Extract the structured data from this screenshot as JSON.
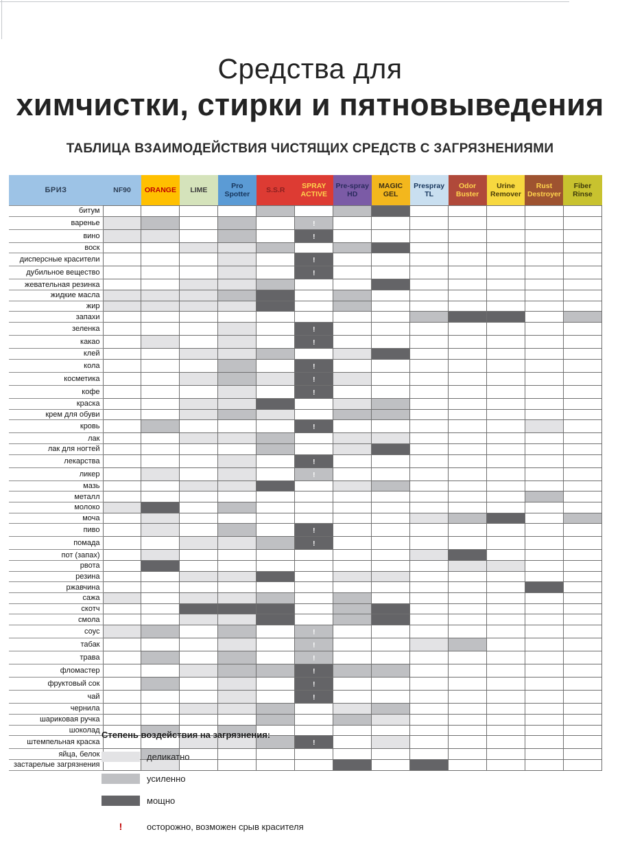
{
  "page": {
    "title_line1": "Средства для",
    "title_line2": "химчистки, стирки и пятновыведения",
    "subtitle": "ТАБЛИЦА ВЗАИМОДЕЙСТВИЯ ЧИСТЯЩИХ СРЕДСТВ С ЗАГРЯЗНЕНИЯМИ"
  },
  "chart_data": {
    "type": "heatmap",
    "title": "ТАБЛИЦА ВЗАИМОДЕЙСТВИЯ ЧИСТЯЩИХ СРЕДСТВ С ЗАГРЯЗНЕНИЯМИ",
    "corner_label": "БРИЗ",
    "value_scale": {
      "1": "деликатно",
      "2": "усиленно",
      "3": "мощно",
      "!": "осторожно, возможен срыв красителя"
    },
    "colors": {
      "1": "#e3e3e5",
      "2": "#bfc0c3",
      "3": "#646467",
      "grid": "#6f6f6f",
      "warning": "#c00000"
    },
    "columns": [
      {
        "label": "NF90",
        "bg": "#9dc3e6",
        "fg": "#2e4057"
      },
      {
        "label": "ORANGE",
        "bg": "#ffc000",
        "fg": "#c00000"
      },
      {
        "label": "LIME",
        "bg": "#d5e3bb",
        "fg": "#3d3d3d"
      },
      {
        "label": "Pro Spotter",
        "bg": "#5b9bd5",
        "fg": "#17365d"
      },
      {
        "label": "S.S.R",
        "bg": "#dd3b33",
        "fg": "#8b2020"
      },
      {
        "label": "SPRAY ACTIVE",
        "bg": "#dd3b33",
        "fg": "#ffd34d"
      },
      {
        "label": "Pre-spray HD",
        "bg": "#7b5ba6",
        "fg": "#2b2b5e"
      },
      {
        "label": "MAGIC GEL",
        "bg": "#f3b71d",
        "fg": "#3d3014"
      },
      {
        "label": "Prespray TL",
        "bg": "#c9dff0",
        "fg": "#17365d"
      },
      {
        "label": "Odor Buster",
        "bg": "#b0493a",
        "fg": "#ffd34d"
      },
      {
        "label": "Urine Remover",
        "bg": "#f7d83f",
        "fg": "#4a3c08"
      },
      {
        "label": "Rust Destroyer",
        "bg": "#9e5330",
        "fg": "#ffd34d"
      },
      {
        "label": "Fiber Rinse",
        "bg": "#c8c22f",
        "fg": "#3d3a0a"
      }
    ],
    "rows": [
      {
        "label": "битум",
        "cells": [
          "",
          "",
          "",
          "",
          "2",
          "",
          "2",
          "3",
          "",
          "",
          "",
          "",
          ""
        ]
      },
      {
        "label": "варенье",
        "cells": [
          "1",
          "2",
          "",
          "2",
          "",
          "2!",
          "",
          "",
          "",
          "",
          "",
          "",
          ""
        ]
      },
      {
        "label": "вино",
        "cells": [
          "1",
          "1",
          "",
          "2",
          "",
          "3!",
          "",
          "",
          "",
          "",
          "",
          "",
          ""
        ]
      },
      {
        "label": "воск",
        "cells": [
          "",
          "",
          "1",
          "1",
          "2",
          "",
          "2",
          "3",
          "",
          "",
          "",
          "",
          ""
        ]
      },
      {
        "label": "дисперсные красители",
        "cells": [
          "",
          "",
          "",
          "1",
          "",
          "3!",
          "",
          "",
          "",
          "",
          "",
          "",
          ""
        ]
      },
      {
        "label": "дубильное вещество",
        "cells": [
          "",
          "",
          "",
          "1",
          "",
          "3!",
          "",
          "",
          "",
          "",
          "",
          "",
          ""
        ]
      },
      {
        "label": "жевательная резинка",
        "cells": [
          "",
          "",
          "1",
          "1",
          "2",
          "",
          "",
          "3",
          "",
          "",
          "",
          "",
          ""
        ]
      },
      {
        "label": "жидкие масла",
        "cells": [
          "1",
          "1",
          "1",
          "2",
          "3",
          "",
          "2",
          "",
          "",
          "",
          "",
          "",
          ""
        ]
      },
      {
        "label": "жир",
        "cells": [
          "1",
          "1",
          "1",
          "1",
          "3",
          "",
          "2",
          "",
          "",
          "",
          "",
          "",
          ""
        ]
      },
      {
        "label": "запахи",
        "cells": [
          "",
          "",
          "",
          "",
          "",
          "",
          "",
          "",
          "2",
          "3",
          "3",
          "",
          "2"
        ]
      },
      {
        "label": "зеленка",
        "cells": [
          "",
          "",
          "",
          "1",
          "",
          "3!",
          "",
          "",
          "",
          "",
          "",
          "",
          ""
        ]
      },
      {
        "label": "какао",
        "cells": [
          "",
          "1",
          "",
          "1",
          "",
          "3!",
          "",
          "",
          "",
          "",
          "",
          "",
          ""
        ]
      },
      {
        "label": "клей",
        "cells": [
          "",
          "",
          "1",
          "1",
          "2",
          "",
          "1",
          "3",
          "",
          "",
          "",
          "",
          ""
        ]
      },
      {
        "label": "кола",
        "cells": [
          "",
          "",
          "",
          "2",
          "",
          "3!",
          "",
          "",
          "",
          "",
          "",
          "",
          ""
        ]
      },
      {
        "label": "косметика",
        "cells": [
          "",
          "",
          "1",
          "2",
          "1",
          "3!",
          "1",
          "",
          "",
          "",
          "",
          "",
          ""
        ]
      },
      {
        "label": "кофе",
        "cells": [
          "",
          "",
          "",
          "1",
          "",
          "3!",
          "",
          "",
          "",
          "",
          "",
          "",
          ""
        ]
      },
      {
        "label": "краска",
        "cells": [
          "",
          "",
          "1",
          "1",
          "3",
          "",
          "1",
          "2",
          "",
          "",
          "",
          "",
          ""
        ]
      },
      {
        "label": "крем для обуви",
        "cells": [
          "",
          "",
          "1",
          "2",
          "1",
          "",
          "2",
          "2",
          "",
          "",
          "",
          "",
          ""
        ]
      },
      {
        "label": "кровь",
        "cells": [
          "",
          "2",
          "",
          "",
          "",
          "3!",
          "",
          "",
          "",
          "",
          "",
          "1",
          ""
        ]
      },
      {
        "label": "лак",
        "cells": [
          "",
          "",
          "1",
          "1",
          "2",
          "",
          "1",
          "1",
          "",
          "",
          "",
          "",
          ""
        ]
      },
      {
        "label": "лак для ногтей",
        "cells": [
          "",
          "",
          "",
          "",
          "2",
          "",
          "1",
          "3",
          "",
          "",
          "",
          "",
          ""
        ]
      },
      {
        "label": "лекарства",
        "cells": [
          "",
          "",
          "",
          "1",
          "",
          "3!",
          "",
          "",
          "",
          "",
          "",
          "",
          ""
        ]
      },
      {
        "label": "ликер",
        "cells": [
          "",
          "1",
          "",
          "1",
          "",
          "2!",
          "",
          "",
          "",
          "",
          "",
          "",
          ""
        ]
      },
      {
        "label": "мазь",
        "cells": [
          "",
          "",
          "1",
          "1",
          "3",
          "",
          "1",
          "2",
          "",
          "",
          "",
          "",
          ""
        ]
      },
      {
        "label": "металл",
        "cells": [
          "",
          "",
          "",
          "",
          "",
          "",
          "",
          "",
          "",
          "",
          "",
          "2",
          ""
        ]
      },
      {
        "label": "молоко",
        "cells": [
          "1",
          "3",
          "",
          "2",
          "",
          "",
          "",
          "",
          "",
          "",
          "",
          "",
          ""
        ]
      },
      {
        "label": "моча",
        "cells": [
          "",
          "1",
          "",
          "",
          "",
          "",
          "",
          "",
          "1",
          "2",
          "3",
          "",
          "2"
        ]
      },
      {
        "label": "пиво",
        "cells": [
          "",
          "1",
          "",
          "2",
          "",
          "3!",
          "",
          "",
          "",
          "",
          "",
          "",
          ""
        ]
      },
      {
        "label": "помада",
        "cells": [
          "",
          "",
          "1",
          "1",
          "2",
          "3!",
          "",
          "",
          "",
          "",
          "",
          "",
          ""
        ]
      },
      {
        "label": "пот (запах)",
        "cells": [
          "",
          "1",
          "",
          "",
          "",
          "",
          "",
          "",
          "1",
          "3",
          "",
          "",
          ""
        ]
      },
      {
        "label": "рвота",
        "cells": [
          "",
          "3",
          "",
          "",
          "",
          "",
          "",
          "",
          "",
          "1",
          "1",
          "",
          ""
        ]
      },
      {
        "label": "резина",
        "cells": [
          "",
          "",
          "1",
          "1",
          "3",
          "",
          "1",
          "1",
          "",
          "",
          "",
          "",
          ""
        ]
      },
      {
        "label": "ржавчина",
        "cells": [
          "",
          "",
          "",
          "",
          "",
          "",
          "",
          "",
          "",
          "",
          "",
          "3",
          ""
        ]
      },
      {
        "label": "сажа",
        "cells": [
          "1",
          "",
          "1",
          "1",
          "2",
          "",
          "2",
          "",
          "",
          "",
          "",
          "",
          ""
        ]
      },
      {
        "label": "скотч",
        "cells": [
          "",
          "",
          "3",
          "3",
          "3",
          "",
          "2",
          "3",
          "",
          "",
          "",
          "",
          ""
        ]
      },
      {
        "label": "смола",
        "cells": [
          "",
          "",
          "1",
          "1",
          "3",
          "",
          "2",
          "3",
          "",
          "",
          "",
          "",
          ""
        ]
      },
      {
        "label": "соус",
        "cells": [
          "1",
          "2",
          "",
          "2",
          "",
          "2!",
          "",
          "",
          "",
          "",
          "",
          "",
          ""
        ]
      },
      {
        "label": "табак",
        "cells": [
          "",
          "",
          "",
          "1",
          "",
          "2!",
          "",
          "",
          "1",
          "2",
          "",
          "",
          ""
        ]
      },
      {
        "label": "трава",
        "cells": [
          "",
          "2",
          "",
          "2",
          "",
          "2!",
          "",
          "",
          "",
          "",
          "",
          "",
          ""
        ]
      },
      {
        "label": "фломастер",
        "cells": [
          "",
          "",
          "1",
          "2",
          "2",
          "3!",
          "2",
          "2",
          "",
          "",
          "",
          "",
          ""
        ]
      },
      {
        "label": "фруктовый сок",
        "cells": [
          "",
          "2",
          "",
          "1",
          "",
          "3!",
          "",
          "",
          "",
          "",
          "",
          "",
          ""
        ]
      },
      {
        "label": "чай",
        "cells": [
          "",
          "",
          "",
          "1",
          "",
          "3!",
          "",
          "",
          "",
          "",
          "",
          "",
          ""
        ]
      },
      {
        "label": "чернила",
        "cells": [
          "",
          "",
          "1",
          "1",
          "2",
          "",
          "1",
          "2",
          "",
          "",
          "",
          "",
          ""
        ]
      },
      {
        "label": "шариковая ручка",
        "cells": [
          "",
          "",
          "",
          "",
          "2",
          "",
          "2",
          "1",
          "",
          "",
          "",
          "",
          ""
        ]
      },
      {
        "label": "шоколад",
        "cells": [
          "",
          "2",
          "",
          "2",
          "",
          "",
          "",
          "",
          "",
          "",
          "",
          "",
          ""
        ]
      },
      {
        "label": "штемпельная краска",
        "cells": [
          "",
          "",
          "1",
          "1",
          "2",
          "3!",
          "",
          "1",
          "",
          "",
          "",
          "",
          ""
        ]
      },
      {
        "label": "яйца, белок",
        "cells": [
          "",
          "2",
          "",
          "",
          "",
          "",
          "",
          "",
          "",
          "",
          "",
          "",
          ""
        ]
      },
      {
        "label": "застарелые загрязнения",
        "cells": [
          "",
          "1",
          "",
          "",
          "",
          "",
          "3",
          "",
          "3",
          "",
          "",
          "",
          ""
        ]
      }
    ],
    "legend": {
      "heading": "Степень воздействия на загрязнения:",
      "items": [
        {
          "level": "1",
          "label": "деликатно"
        },
        {
          "level": "2",
          "label": "усиленно"
        },
        {
          "level": "3",
          "label": "мощно"
        }
      ],
      "warning_symbol": "!",
      "warning_label": "осторожно, возможен срыв красителя"
    }
  }
}
